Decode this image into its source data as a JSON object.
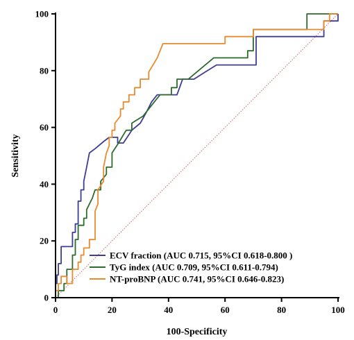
{
  "chart_data": {
    "type": "line",
    "xlabel": "100-Specificity",
    "ylabel": "Sensitivity",
    "xlim": [
      0,
      100
    ],
    "ylim": [
      0,
      100
    ],
    "xticks": [
      0,
      20,
      40,
      60,
      80,
      100
    ],
    "yticks": [
      0,
      20,
      40,
      60,
      80,
      100
    ],
    "legend_position": "bottom-center",
    "reference_line": {
      "from": [
        0,
        0
      ],
      "to": [
        100,
        100
      ],
      "style": "dotted",
      "color": "#c86464"
    },
    "series": [
      {
        "name": "ECV fraction (AUC 0.715, 95%CI 0.618-0.800 )",
        "color": "#3c3c96",
        "points": [
          [
            0,
            0
          ],
          [
            0,
            5
          ],
          [
            0.5,
            5
          ],
          [
            0.5,
            8
          ],
          [
            1,
            8
          ],
          [
            1,
            12
          ],
          [
            2,
            12
          ],
          [
            2,
            18
          ],
          [
            6,
            18
          ],
          [
            6,
            23
          ],
          [
            7,
            23
          ],
          [
            7,
            26
          ],
          [
            8,
            26
          ],
          [
            8,
            34
          ],
          [
            9,
            34
          ],
          [
            9,
            38
          ],
          [
            10,
            38
          ],
          [
            10,
            41
          ],
          [
            11,
            46
          ],
          [
            12,
            51
          ],
          [
            14,
            52.5
          ],
          [
            17,
            55
          ],
          [
            19,
            56.5
          ],
          [
            22,
            56.5
          ],
          [
            22,
            54.5
          ],
          [
            24,
            54.5
          ],
          [
            27,
            59
          ],
          [
            30,
            61.5
          ],
          [
            32,
            65
          ],
          [
            34,
            69
          ],
          [
            36,
            71.5
          ],
          [
            43,
            71.5
          ],
          [
            45,
            77
          ],
          [
            49,
            77
          ],
          [
            53,
            79.5
          ],
          [
            57,
            82
          ],
          [
            71,
            82
          ],
          [
            71,
            92
          ],
          [
            95,
            92
          ],
          [
            95,
            97.5
          ],
          [
            100,
            97.5
          ],
          [
            100,
            100
          ]
        ]
      },
      {
        "name": "TyG index (AUC 0.709, 95%CI 0.611-0.794)",
        "color": "#2c6b2c",
        "points": [
          [
            0,
            0
          ],
          [
            1,
            0
          ],
          [
            1,
            2.5
          ],
          [
            3,
            2.5
          ],
          [
            3,
            5
          ],
          [
            4,
            5
          ],
          [
            4,
            10
          ],
          [
            6,
            10
          ],
          [
            6,
            15
          ],
          [
            7,
            15
          ],
          [
            7,
            20.5
          ],
          [
            8,
            20.5
          ],
          [
            8,
            25.5
          ],
          [
            10,
            25.5
          ],
          [
            10,
            28
          ],
          [
            11,
            28
          ],
          [
            11,
            31
          ],
          [
            12,
            33
          ],
          [
            13,
            35
          ],
          [
            14,
            38
          ],
          [
            16,
            38
          ],
          [
            16,
            41
          ],
          [
            18,
            43.5
          ],
          [
            18,
            46
          ],
          [
            20,
            46
          ],
          [
            20,
            51
          ],
          [
            22,
            54
          ],
          [
            25,
            59
          ],
          [
            27,
            59
          ],
          [
            27,
            61.5
          ],
          [
            31,
            64
          ],
          [
            35,
            69
          ],
          [
            37,
            71.5
          ],
          [
            41,
            71.5
          ],
          [
            41,
            74
          ],
          [
            43,
            74
          ],
          [
            43,
            77
          ],
          [
            47,
            77
          ],
          [
            50,
            79.5
          ],
          [
            53,
            82
          ],
          [
            56,
            84.5
          ],
          [
            68,
            84.5
          ],
          [
            68,
            87
          ],
          [
            70,
            87
          ],
          [
            70,
            94.5
          ],
          [
            89,
            94.5
          ],
          [
            89,
            100
          ],
          [
            100,
            100
          ]
        ]
      },
      {
        "name": "NT-proBNP  (AUC 0.741, 95%CI 0.646-0.823)",
        "color": "#e88a2e",
        "points": [
          [
            0,
            0
          ],
          [
            0,
            2.5
          ],
          [
            1,
            2.5
          ],
          [
            1,
            5
          ],
          [
            2,
            5
          ],
          [
            2,
            7.5
          ],
          [
            4,
            7.5
          ],
          [
            4,
            5
          ],
          [
            6,
            5
          ],
          [
            6,
            10
          ],
          [
            8,
            10
          ],
          [
            8,
            12.5
          ],
          [
            9,
            12.5
          ],
          [
            9,
            15
          ],
          [
            10,
            15
          ],
          [
            10,
            17.5
          ],
          [
            12,
            17.5
          ],
          [
            12,
            20.5
          ],
          [
            14,
            20.5
          ],
          [
            14,
            30.5
          ],
          [
            15,
            33
          ],
          [
            15,
            38
          ],
          [
            17,
            41
          ],
          [
            17,
            46
          ],
          [
            18,
            51
          ],
          [
            19,
            53.5
          ],
          [
            19,
            56.5
          ],
          [
            20,
            56.5
          ],
          [
            20,
            59
          ],
          [
            21,
            59
          ],
          [
            21,
            61.5
          ],
          [
            23,
            64
          ],
          [
            23,
            66.5
          ],
          [
            24,
            66.5
          ],
          [
            24,
            69
          ],
          [
            26,
            69
          ],
          [
            26,
            71.5
          ],
          [
            28,
            71.5
          ],
          [
            28,
            74
          ],
          [
            30,
            74
          ],
          [
            30,
            77
          ],
          [
            33,
            77
          ],
          [
            33,
            79.5
          ],
          [
            36,
            84.5
          ],
          [
            38,
            89.5
          ],
          [
            60,
            89.5
          ],
          [
            60,
            92
          ],
          [
            70,
            92
          ],
          [
            70,
            94.5
          ],
          [
            95,
            94.5
          ],
          [
            95,
            97.5
          ],
          [
            97,
            97.5
          ],
          [
            97,
            100
          ],
          [
            100,
            100
          ]
        ]
      }
    ]
  }
}
